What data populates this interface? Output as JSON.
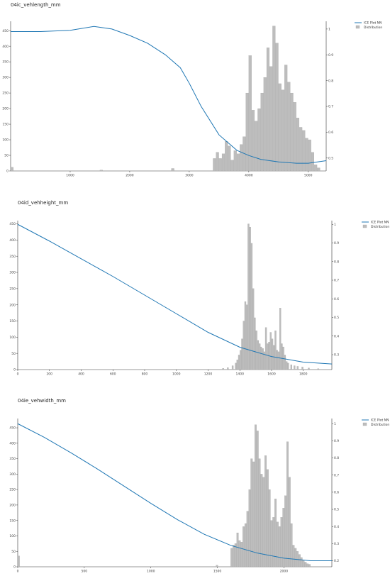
{
  "colors": {
    "line": "#1f77b4",
    "bars": "#bdbdbd",
    "bar_edge": "#9e9e9e"
  },
  "legend": {
    "line_label": "ICE Plot NN",
    "bars_label": "Distribution"
  },
  "chart_data": [
    {
      "type": "bar",
      "title": "04ic_vehlength_mm",
      "xlim": [
        0,
        5300
      ],
      "ylim_left": [
        0,
        480
      ],
      "ylim_right": [
        0.45,
        1.03
      ],
      "xticks": [
        1000,
        2000,
        3000,
        4000,
        5000
      ],
      "yticks_left": [
        0,
        50,
        100,
        150,
        200,
        250,
        300,
        350,
        400,
        450
      ],
      "yticks_right": [
        0.5,
        0.6,
        0.7,
        0.8,
        0.9,
        1
      ],
      "distribution": {
        "bin_width": 50,
        "bins": [
          [
            0,
            12
          ],
          [
            1500,
            3
          ],
          [
            2700,
            8
          ],
          [
            3400,
            40
          ],
          [
            3450,
            60
          ],
          [
            3500,
            40
          ],
          [
            3550,
            55
          ],
          [
            3600,
            95
          ],
          [
            3650,
            80
          ],
          [
            3700,
            35
          ],
          [
            3750,
            65
          ],
          [
            3800,
            55
          ],
          [
            3850,
            85
          ],
          [
            3900,
            110
          ],
          [
            3950,
            250
          ],
          [
            4000,
            370
          ],
          [
            4050,
            195
          ],
          [
            4100,
            160
          ],
          [
            4150,
            200
          ],
          [
            4200,
            250
          ],
          [
            4250,
            300
          ],
          [
            4300,
            395
          ],
          [
            4350,
            335
          ],
          [
            4400,
            465
          ],
          [
            4450,
            410
          ],
          [
            4500,
            280
          ],
          [
            4550,
            260
          ],
          [
            4600,
            340
          ],
          [
            4650,
            285
          ],
          [
            4700,
            250
          ],
          [
            4750,
            220
          ],
          [
            4800,
            170
          ],
          [
            4850,
            140
          ],
          [
            4900,
            130
          ],
          [
            4950,
            105
          ],
          [
            5000,
            100
          ],
          [
            5050,
            60
          ],
          [
            5100,
            20
          ],
          [
            5150,
            10
          ]
        ]
      },
      "ice_line": {
        "x": [
          0,
          500,
          1000,
          1400,
          1700,
          2000,
          2300,
          2600,
          2850,
          3000,
          3200,
          3500,
          3800,
          4000,
          4200,
          4500,
          4800,
          5000,
          5300
        ],
        "y": [
          0.99,
          0.99,
          0.995,
          1.01,
          1.0,
          0.975,
          0.945,
          0.9,
          0.85,
          0.79,
          0.7,
          0.59,
          0.53,
          0.51,
          0.495,
          0.485,
          0.48,
          0.48,
          0.49
        ]
      }
    },
    {
      "type": "bar",
      "title": "04id_vehheight_mm",
      "xlim": [
        0,
        1980
      ],
      "ylim_left": [
        0,
        460
      ],
      "ylim_right": [
        0.22,
        1.02
      ],
      "xticks": [
        0,
        200,
        400,
        600,
        800,
        1000,
        1200,
        1400,
        1600,
        1800
      ],
      "yticks_left": [
        0,
        50,
        100,
        150,
        200,
        250,
        300,
        350,
        400,
        450
      ],
      "yticks_right": [
        0.3,
        0.4,
        0.5,
        0.6,
        0.7,
        0.8,
        0.9,
        1
      ],
      "distribution": {
        "bin_width": 10,
        "bins": [
          [
            1290,
            4
          ],
          [
            1320,
            6
          ],
          [
            1350,
            12
          ],
          [
            1370,
            20
          ],
          [
            1380,
            30
          ],
          [
            1390,
            45
          ],
          [
            1400,
            60
          ],
          [
            1410,
            95
          ],
          [
            1420,
            150
          ],
          [
            1430,
            210
          ],
          [
            1440,
            200
          ],
          [
            1450,
            450
          ],
          [
            1460,
            440
          ],
          [
            1470,
            390
          ],
          [
            1480,
            250
          ],
          [
            1490,
            160
          ],
          [
            1500,
            120
          ],
          [
            1510,
            90
          ],
          [
            1520,
            80
          ],
          [
            1530,
            70
          ],
          [
            1540,
            65
          ],
          [
            1550,
            55
          ],
          [
            1560,
            130
          ],
          [
            1570,
            80
          ],
          [
            1580,
            85
          ],
          [
            1590,
            115
          ],
          [
            1600,
            95
          ],
          [
            1610,
            75
          ],
          [
            1620,
            120
          ],
          [
            1630,
            60
          ],
          [
            1640,
            55
          ],
          [
            1650,
            190
          ],
          [
            1660,
            80
          ],
          [
            1670,
            70
          ],
          [
            1680,
            45
          ],
          [
            1690,
            25
          ],
          [
            1700,
            20
          ],
          [
            1720,
            15
          ],
          [
            1740,
            12
          ],
          [
            1760,
            10
          ],
          [
            1790,
            8
          ],
          [
            1830,
            5
          ],
          [
            1890,
            3
          ]
        ]
      },
      "ice_line": {
        "x": [
          0,
          200,
          400,
          600,
          800,
          1000,
          1200,
          1400,
          1600,
          1800,
          1980
        ],
        "y": [
          1.0,
          0.91,
          0.815,
          0.72,
          0.62,
          0.52,
          0.42,
          0.34,
          0.29,
          0.26,
          0.25
        ]
      }
    },
    {
      "type": "bar",
      "title": "04ie_vehwidth_mm",
      "xlim": [
        0,
        2360
      ],
      "ylim_left": [
        0,
        480
      ],
      "ylim_right": [
        0.165,
        1.03
      ],
      "xticks": [
        0,
        500,
        1000,
        1500,
        2000
      ],
      "yticks_left": [
        0,
        50,
        100,
        150,
        200,
        250,
        300,
        350,
        400,
        450
      ],
      "yticks_right": [
        0.2,
        0.3,
        0.4,
        0.5,
        0.6,
        0.7,
        0.8,
        0.9,
        1
      ],
      "distribution": {
        "bin_width": 15,
        "bins": [
          [
            0,
            35
          ],
          [
            1490,
            5
          ],
          [
            1600,
            60
          ],
          [
            1615,
            70
          ],
          [
            1630,
            75
          ],
          [
            1645,
            110
          ],
          [
            1660,
            85
          ],
          [
            1675,
            80
          ],
          [
            1690,
            130
          ],
          [
            1705,
            140
          ],
          [
            1720,
            180
          ],
          [
            1735,
            250
          ],
          [
            1750,
            350
          ],
          [
            1765,
            340
          ],
          [
            1780,
            460
          ],
          [
            1795,
            440
          ],
          [
            1810,
            350
          ],
          [
            1825,
            300
          ],
          [
            1840,
            290
          ],
          [
            1855,
            360
          ],
          [
            1870,
            315
          ],
          [
            1885,
            250
          ],
          [
            1900,
            150
          ],
          [
            1915,
            160
          ],
          [
            1930,
            220
          ],
          [
            1945,
            145
          ],
          [
            1960,
            130
          ],
          [
            1975,
            160
          ],
          [
            1990,
            190
          ],
          [
            2005,
            230
          ],
          [
            2020,
            405
          ],
          [
            2035,
            290
          ],
          [
            2050,
            140
          ],
          [
            2065,
            70
          ],
          [
            2080,
            60
          ],
          [
            2095,
            50
          ],
          [
            2110,
            40
          ],
          [
            2125,
            30
          ],
          [
            2140,
            20
          ],
          [
            2155,
            15
          ],
          [
            2170,
            10
          ],
          [
            2185,
            8
          ]
        ]
      },
      "ice_line": {
        "x": [
          0,
          200,
          400,
          600,
          800,
          1000,
          1200,
          1400,
          1600,
          1800,
          2000,
          2200,
          2360
        ],
        "y": [
          1.0,
          0.92,
          0.83,
          0.735,
          0.635,
          0.535,
          0.44,
          0.355,
          0.29,
          0.245,
          0.215,
          0.2,
          0.2
        ]
      }
    }
  ]
}
